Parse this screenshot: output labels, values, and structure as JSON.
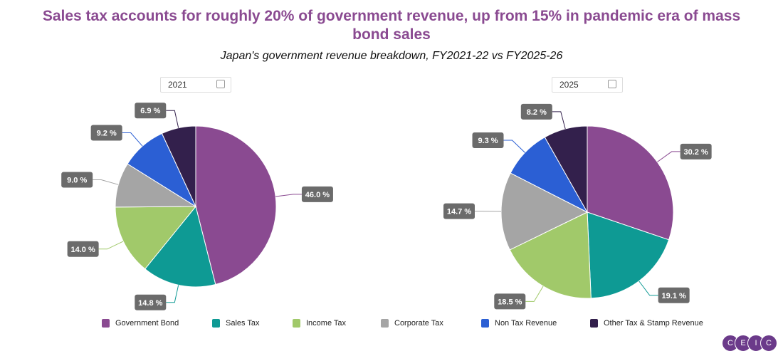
{
  "title": "Sales tax accounts for roughly 20% of government revenue, up from 15% in pandemic era of mass bond sales",
  "subtitle": "Japan's government revenue breakdown, FY2021-22 vs FY2025-26",
  "logo": "CEIC",
  "chart_data": [
    {
      "type": "pie",
      "selector": "2021",
      "categories": [
        "Government Bond",
        "Sales Tax",
        "Income Tax",
        "Corporate Tax",
        "Non Tax Revenue",
        "Other Tax & Stamp Revenue"
      ],
      "values": [
        46.0,
        14.8,
        14.0,
        9.0,
        9.2,
        6.9
      ],
      "labels": [
        "46.0 %",
        "14.8 %",
        "14.0 %",
        "9.0 %",
        "9.2 %",
        "6.9 %"
      ]
    },
    {
      "type": "pie",
      "selector": "2025",
      "categories": [
        "Government Bond",
        "Sales Tax",
        "Income Tax",
        "Corporate Tax",
        "Non Tax Revenue",
        "Other Tax & Stamp Revenue"
      ],
      "values": [
        30.2,
        19.1,
        18.5,
        14.7,
        9.3,
        8.2
      ],
      "labels": [
        "30.2 %",
        "19.1 %",
        "18.5 %",
        "14.7 %",
        "9.3 %",
        "8.2 %"
      ]
    }
  ],
  "legend": [
    {
      "label": "Government Bond",
      "color": "#8a4a91"
    },
    {
      "label": "Sales Tax",
      "color": "#0e9a94"
    },
    {
      "label": "Income Tax",
      "color": "#a1c96a"
    },
    {
      "label": "Corporate Tax",
      "color": "#a5a5a5"
    },
    {
      "label": "Non Tax Revenue",
      "color": "#2b5fd4"
    },
    {
      "label": "Other Tax & Stamp Revenue",
      "color": "#33204c"
    }
  ]
}
